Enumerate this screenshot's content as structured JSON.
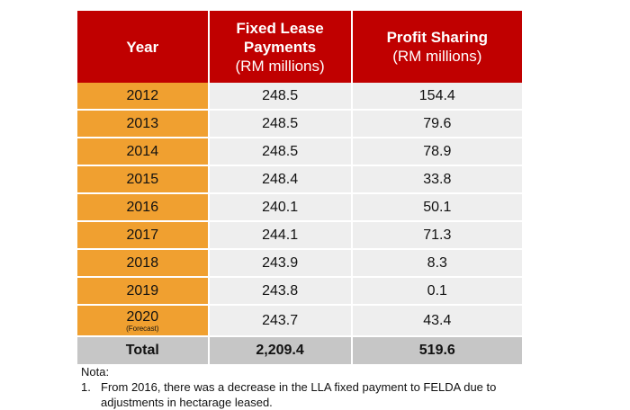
{
  "headers": {
    "year": "Year",
    "lease_title_1": "Fixed Lease",
    "lease_title_2": "Payments",
    "lease_unit": "(RM millions)",
    "profit_title": "Profit Sharing",
    "profit_unit": "(RM millions)"
  },
  "rows": [
    {
      "year": "2012",
      "note": "",
      "lease": "248.5",
      "profit": "154.4"
    },
    {
      "year": "2013",
      "note": "",
      "lease": "248.5",
      "profit": "79.6"
    },
    {
      "year": "2014",
      "note": "",
      "lease": "248.5",
      "profit": "78.9"
    },
    {
      "year": "2015",
      "note": "",
      "lease": "248.4",
      "profit": "33.8"
    },
    {
      "year": "2016",
      "note": "",
      "lease": "240.1",
      "profit": "50.1"
    },
    {
      "year": "2017",
      "note": "",
      "lease": "244.1",
      "profit": "71.3"
    },
    {
      "year": "2018",
      "note": "",
      "lease": "243.9",
      "profit": "8.3"
    },
    {
      "year": "2019",
      "note": "",
      "lease": "243.8",
      "profit": "0.1"
    },
    {
      "year": "2020",
      "note": "(Forecast)",
      "lease": "243.7",
      "profit": "43.4"
    }
  ],
  "total": {
    "label": "Total",
    "lease": "2,209.4",
    "profit": "519.6"
  },
  "notes": {
    "heading": "Nota:",
    "items": [
      {
        "num": "1.",
        "text": "From 2016, there was a decrease in the LLA fixed payment to FELDA due to adjustments in hectarage leased."
      }
    ]
  },
  "colors": {
    "header": "#c00000",
    "year_cells": "#f0a030",
    "value_cells": "#eeeeee",
    "total_row": "#c6c6c6"
  }
}
